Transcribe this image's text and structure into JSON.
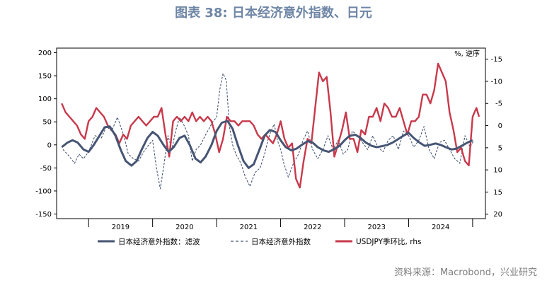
{
  "title": "图表 38: 日本经济意外指数、日元",
  "source": "资料来源：Macrobond，兴业研究",
  "colors": {
    "smoothed": "#465574",
    "raw": "#465574",
    "usdjpy": "#c8394b",
    "title": "#6e86a6",
    "axis": "#000000"
  },
  "chart_data": {
    "type": "line",
    "title": "图表 38: 日本经济意外指数、日元",
    "right_axis_unit": "%, 逆序",
    "x_ticks": [
      "2019",
      "2020",
      "2021",
      "2022",
      "2023",
      "2024"
    ],
    "xlim": [
      2018.5,
      2025.2
    ],
    "y_left": {
      "ylim": [
        -160,
        210
      ],
      "ticks": [
        "200",
        "150",
        "100",
        "50",
        "0",
        "-50",
        "-100",
        "-150"
      ]
    },
    "y_right": {
      "ylim": [
        21,
        -17.5
      ],
      "inverted": true,
      "ticks": [
        "-15",
        "-10",
        "-5",
        "0",
        "5",
        "10",
        "15",
        "20"
      ]
    },
    "legend": [
      "日本经济意外指数：滤波",
      "日本经济意外指数",
      "USDJPY季环比, rhs"
    ],
    "series": [
      {
        "name": "日本经济意外指数：滤波",
        "axis": "left",
        "style": "solid",
        "x": [
          2018.58,
          2018.67,
          2018.75,
          2018.83,
          2018.92,
          2019.0,
          2019.08,
          2019.17,
          2019.25,
          2019.33,
          2019.42,
          2019.5,
          2019.58,
          2019.67,
          2019.75,
          2019.83,
          2019.92,
          2020.0,
          2020.08,
          2020.17,
          2020.25,
          2020.33,
          2020.42,
          2020.5,
          2020.58,
          2020.67,
          2020.75,
          2020.83,
          2020.92,
          2021.0,
          2021.08,
          2021.17,
          2021.25,
          2021.33,
          2021.42,
          2021.5,
          2021.58,
          2021.67,
          2021.75,
          2021.83,
          2021.92,
          2022.0,
          2022.08,
          2022.17,
          2022.25,
          2022.33,
          2022.42,
          2022.5,
          2022.58,
          2022.67,
          2022.75,
          2022.83,
          2022.92,
          2023.0,
          2023.08,
          2023.17,
          2023.25,
          2023.33,
          2023.42,
          2023.5,
          2023.58,
          2023.67,
          2023.75,
          2023.83,
          2023.92,
          2024.0,
          2024.08,
          2024.17,
          2024.25,
          2024.33,
          2024.42,
          2024.5,
          2024.58,
          2024.67,
          2024.75,
          2024.83,
          2024.92,
          2025.0
        ],
        "values": [
          -5,
          5,
          10,
          5,
          -10,
          -15,
          0,
          20,
          38,
          40,
          20,
          -10,
          -35,
          -45,
          -35,
          -10,
          15,
          28,
          20,
          0,
          -15,
          -5,
          15,
          20,
          0,
          -30,
          -38,
          -25,
          0,
          30,
          48,
          52,
          35,
          0,
          -35,
          -50,
          -42,
          -10,
          20,
          32,
          28,
          10,
          -5,
          -12,
          -8,
          0,
          8,
          5,
          -5,
          -12,
          -15,
          -10,
          -2,
          10,
          20,
          22,
          15,
          5,
          -2,
          -5,
          -3,
          0,
          5,
          12,
          20,
          26,
          15,
          5,
          -2,
          0,
          3,
          0,
          -5,
          -10,
          -8,
          -2,
          5,
          10
        ]
      },
      {
        "name": "日本经济意外指数",
        "axis": "left",
        "style": "dashed",
        "x": [
          2018.6,
          2018.7,
          2018.78,
          2018.85,
          2018.92,
          2019.0,
          2019.1,
          2019.2,
          2019.28,
          2019.36,
          2019.45,
          2019.55,
          2019.62,
          2019.7,
          2019.78,
          2019.86,
          2019.94,
          2020.0,
          2020.06,
          2020.12,
          2020.18,
          2020.24,
          2020.3,
          2020.36,
          2020.42,
          2020.5,
          2020.56,
          2020.62,
          2020.68,
          2020.75,
          2020.82,
          2020.88,
          2020.94,
          2021.0,
          2021.05,
          2021.1,
          2021.15,
          2021.2,
          2021.25,
          2021.3,
          2021.38,
          2021.45,
          2021.52,
          2021.6,
          2021.68,
          2021.75,
          2021.8,
          2021.85,
          2021.9,
          2021.95,
          2022.0,
          2022.05,
          2022.12,
          2022.2,
          2022.28,
          2022.35,
          2022.42,
          2022.5,
          2022.58,
          2022.66,
          2022.74,
          2022.82,
          2022.9,
          2022.98,
          2023.05,
          2023.12,
          2023.2,
          2023.28,
          2023.36,
          2023.44,
          2023.52,
          2023.6,
          2023.68,
          2023.76,
          2023.84,
          2023.92,
          2024.0,
          2024.08,
          2024.16,
          2024.24,
          2024.32,
          2024.4,
          2024.48,
          2024.56,
          2024.64,
          2024.72,
          2024.8,
          2024.88,
          2024.96,
          2025.02
        ],
        "values": [
          -10,
          -25,
          -40,
          -20,
          -30,
          -15,
          20,
          15,
          40,
          30,
          60,
          20,
          -20,
          -30,
          -35,
          -15,
          0,
          10,
          -50,
          -95,
          -40,
          20,
          -10,
          30,
          60,
          40,
          20,
          -35,
          -10,
          0,
          20,
          35,
          50,
          60,
          120,
          155,
          140,
          40,
          0,
          -20,
          -40,
          -70,
          -90,
          -60,
          -50,
          -20,
          10,
          30,
          45,
          10,
          -10,
          -40,
          -70,
          -40,
          -20,
          10,
          30,
          -10,
          -30,
          -10,
          20,
          -10,
          10,
          -20,
          -10,
          30,
          20,
          5,
          -10,
          20,
          -5,
          -15,
          10,
          20,
          -10,
          30,
          20,
          -5,
          10,
          40,
          -10,
          -30,
          5,
          10,
          -10,
          -30,
          -40,
          20,
          -5,
          10
        ]
      },
      {
        "name": "USDJPY季环比, rhs",
        "axis": "right",
        "style": "solid",
        "x": [
          2018.58,
          2018.64,
          2018.7,
          2018.76,
          2018.82,
          2018.88,
          2018.94,
          2019.0,
          2019.06,
          2019.12,
          2019.18,
          2019.24,
          2019.3,
          2019.36,
          2019.42,
          2019.48,
          2019.54,
          2019.6,
          2019.66,
          2019.72,
          2019.78,
          2019.84,
          2019.9,
          2019.96,
          2020.02,
          2020.08,
          2020.14,
          2020.2,
          2020.26,
          2020.32,
          2020.38,
          2020.44,
          2020.5,
          2020.56,
          2020.62,
          2020.68,
          2020.74,
          2020.8,
          2020.86,
          2020.92,
          2020.98,
          2021.04,
          2021.1,
          2021.16,
          2021.22,
          2021.28,
          2021.34,
          2021.4,
          2021.46,
          2021.52,
          2021.58,
          2021.64,
          2021.7,
          2021.76,
          2021.82,
          2021.88,
          2021.94,
          2022.0,
          2022.06,
          2022.12,
          2022.18,
          2022.24,
          2022.3,
          2022.36,
          2022.42,
          2022.48,
          2022.54,
          2022.6,
          2022.66,
          2022.72,
          2022.78,
          2022.84,
          2022.9,
          2022.96,
          2023.02,
          2023.08,
          2023.14,
          2023.2,
          2023.26,
          2023.32,
          2023.38,
          2023.44,
          2023.5,
          2023.56,
          2023.62,
          2023.68,
          2023.74,
          2023.8,
          2023.86,
          2023.92,
          2023.98,
          2024.04,
          2024.1,
          2024.16,
          2024.22,
          2024.28,
          2024.34,
          2024.4,
          2024.46,
          2024.52,
          2024.58,
          2024.64,
          2024.7,
          2024.76,
          2024.82,
          2024.88,
          2024.94,
          2025.0,
          2025.06,
          2025.1
        ],
        "values": [
          -5,
          -3,
          -2,
          -1,
          0,
          2,
          3,
          -1,
          -2,
          -4,
          -3,
          -2,
          0,
          1,
          2,
          4,
          2,
          3,
          0,
          -1,
          -2,
          -1,
          0,
          -1,
          -2,
          -2,
          -4,
          2,
          7,
          -1,
          -2,
          -1,
          -2,
          -1,
          -3,
          -1,
          -2,
          -1,
          -2,
          -1,
          2,
          6,
          3,
          -2,
          -1,
          -1,
          0,
          -1,
          -1,
          -1,
          0,
          2,
          3,
          2,
          3,
          4,
          2,
          -1,
          3,
          5,
          4,
          12,
          14,
          8,
          3,
          4,
          -4,
          -12,
          -10,
          -11,
          -3,
          7,
          4,
          1,
          -3,
          3,
          3,
          6,
          1,
          2,
          -2,
          -2,
          -4,
          -1,
          -5,
          -4,
          -2,
          -2,
          -4,
          -1,
          2,
          -1,
          -1,
          -2,
          -7,
          -7,
          -5,
          -8,
          -14,
          -12,
          -10,
          -3,
          1,
          6,
          5,
          8,
          9,
          -2,
          -4,
          -2
        ]
      }
    ]
  }
}
